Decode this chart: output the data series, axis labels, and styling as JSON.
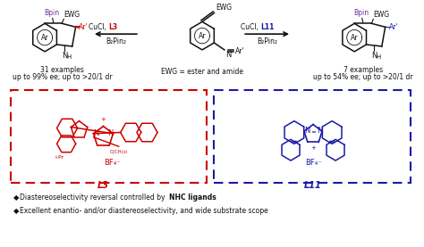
{
  "bg_color": "#ffffff",
  "red_color": "#cc0000",
  "blue_color": "#1a1aaa",
  "black_color": "#111111",
  "purple_color": "#7030a0",
  "bullet": "◆",
  "left_label_line1": "31 examples",
  "left_label_line2": "up to 99% ee; up to >20/1 dr",
  "center_label": "EWG = ester and amide",
  "right_label_line1": "7 examples",
  "right_label_line2": "up to 54% ee; up to >20/1 dr",
  "B2Pin2": "B₂Pin₂",
  "bullet1_prefix": "Diastereoselectivity reversal controlled by ",
  "bullet1_bold": "NHC ligands",
  "bullet2": "Excellent enantio- and/or diastereoselectivity, and wide substrate scope"
}
